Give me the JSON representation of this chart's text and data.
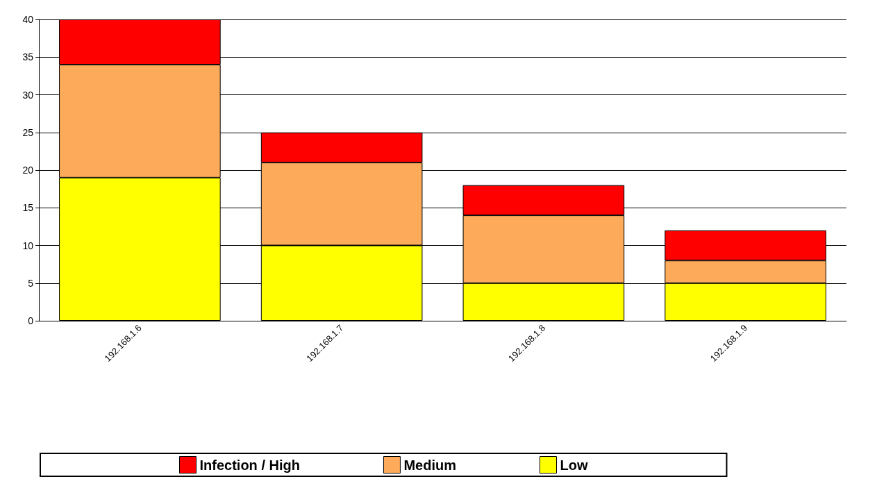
{
  "chart_data": {
    "type": "bar",
    "stacked": true,
    "categories": [
      "192.168.1.6",
      "192.168.1.7",
      "192.168.1.8",
      "192.168.1.9"
    ],
    "series": [
      {
        "name": "Low",
        "color": "#ffff00",
        "values": [
          19,
          10,
          5,
          5
        ]
      },
      {
        "name": "Medium",
        "color": "#fdab5b",
        "values": [
          15,
          11,
          9,
          3
        ]
      },
      {
        "name": "Infection / High",
        "color": "#ff0000",
        "values": [
          6,
          4,
          4,
          4
        ]
      }
    ],
    "ylim": [
      0,
      40
    ],
    "yticks": [
      0,
      5,
      10,
      15,
      20,
      25,
      30,
      35,
      40
    ],
    "grid": "y",
    "legend": "bottom"
  }
}
